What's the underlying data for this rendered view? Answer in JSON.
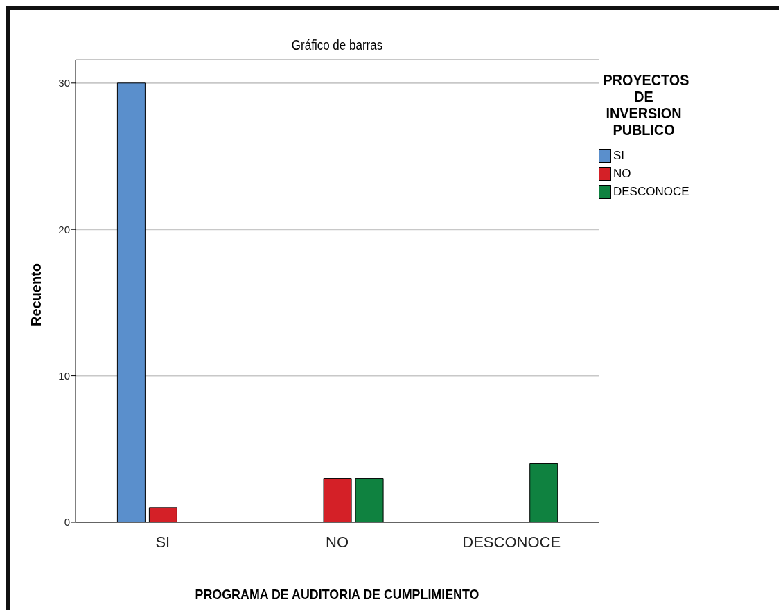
{
  "chart_data": {
    "type": "bar",
    "title": "Gráfico de barras",
    "xlabel": "PROGRAMA DE AUDITORIA DE CUMPLIMIENTO",
    "ylabel": "Recuento",
    "legend_title": "PROYECTOS DE INVERSION PUBLICO",
    "categories": [
      "SI",
      "NO",
      "DESCONOCE"
    ],
    "series": [
      {
        "name": "SI",
        "color": "#5a8fcc",
        "values": [
          30,
          null,
          null
        ]
      },
      {
        "name": "NO",
        "color": "#d42027",
        "values": [
          1,
          3,
          null
        ]
      },
      {
        "name": "DESCONOCE",
        "color": "#0f8240",
        "values": [
          null,
          3,
          4
        ]
      }
    ],
    "ylim": [
      0,
      31.6
    ],
    "yticks": [
      0,
      10,
      20,
      30
    ],
    "grid": "y",
    "legend": "top right"
  }
}
